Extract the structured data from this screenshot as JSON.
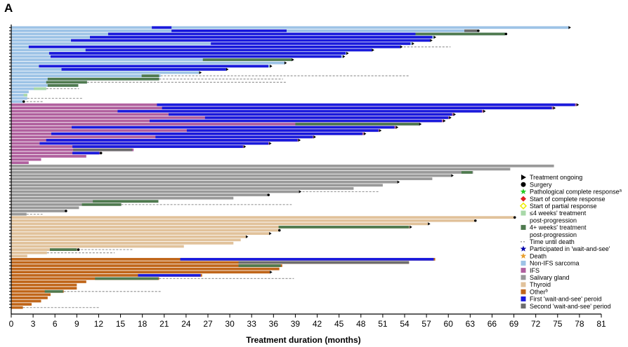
{
  "panel_label": "A",
  "chart_data": {
    "type": "bar",
    "orientation": "horizontal",
    "xlabel": "Treatment duration (months)",
    "ylabel": "",
    "xlim": [
      0,
      81
    ],
    "xticks": [
      0,
      3,
      6,
      9,
      12,
      15,
      18,
      21,
      24,
      27,
      30,
      33,
      36,
      39,
      42,
      45,
      48,
      51,
      54,
      57,
      60,
      63,
      66,
      69,
      72,
      75,
      78,
      81
    ],
    "colors": {
      "non_ifs": "#9dc3e6",
      "ifs": "#b0609e",
      "salivary": "#999999",
      "thyroid": "#e1c29b",
      "other": "#c0661a",
      "first_wait": "#1a1adc",
      "second_wait": "#6d6d6d",
      "post_short": "#a8d8a8",
      "post_long": "#4f7a4f",
      "dash": "#999999",
      "surgery": "#000000",
      "pcr": "#22cc22",
      "cr": "#dd2222",
      "pr": "#eeee00",
      "death": "#e8a030",
      "waitsee_star": "#0000aa"
    },
    "legend": [
      {
        "label": "Treatment ongoing",
        "marker": "triangle",
        "color": "#000000"
      },
      {
        "label": "Surgery",
        "marker": "circle",
        "color": "#000000"
      },
      {
        "label": "Pathological complete response",
        "sup": "a",
        "marker": "star",
        "color": "#22cc22"
      },
      {
        "label": "Start of complete response",
        "marker": "diamond",
        "color": "#dd2222"
      },
      {
        "label": "Start of partial response",
        "marker": "diamond-open",
        "color": "#eeee00"
      },
      {
        "label": "≤4 weeks' treatment",
        "label2": "post-progression",
        "marker": "square",
        "color": "#a8d8a8"
      },
      {
        "label": "4+ weeks' treatment",
        "label2": "post-progression",
        "marker": "square",
        "color": "#4f7a4f"
      },
      {
        "label": "Time until death",
        "marker": "dash",
        "color": "#999999"
      },
      {
        "label": "Participated in 'wait-and-see'",
        "marker": "star",
        "color": "#0000aa"
      },
      {
        "label": "Death",
        "marker": "star",
        "color": "#e8a030"
      },
      {
        "label": "Non-IFS sarcoma",
        "marker": "square",
        "color": "#9dc3e6"
      },
      {
        "label": "IFS",
        "marker": "square",
        "color": "#b0609e"
      },
      {
        "label": "Salivary gland",
        "marker": "square",
        "color": "#999999"
      },
      {
        "label": "Thyroid",
        "marker": "square",
        "color": "#e1c29b"
      },
      {
        "label": "Other",
        "sup": "b",
        "marker": "square",
        "color": "#c0661a"
      },
      {
        "label": "First 'wait-and-see' peroid",
        "marker": "square",
        "color": "#1a1adc"
      },
      {
        "label": "Second 'wait-and-see' period",
        "marker": "square",
        "color": "#6d6d6d"
      }
    ],
    "patients": [
      {
        "group": "non_ifs",
        "dur": 76.5,
        "end": "triangle",
        "segs": [
          [
            19.3,
            22,
            "first_wait"
          ]
        ]
      },
      {
        "group": "non_ifs",
        "dur": 64,
        "end": "circle",
        "segs": [
          [
            22,
            37.8,
            "first_wait"
          ],
          [
            62.2,
            64,
            "second_wait"
          ]
        ]
      },
      {
        "group": "non_ifs",
        "dur": 67.8,
        "end": "circle",
        "segs": [
          [
            13.3,
            55.5,
            "first_wait"
          ],
          [
            55.5,
            67.8,
            "post_long"
          ]
        ]
      },
      {
        "group": "non_ifs",
        "dur": 58,
        "end": "triangle",
        "segs": [
          [
            10.8,
            57.8,
            "first_wait"
          ]
        ]
      },
      {
        "group": "non_ifs",
        "dur": 57.5,
        "end": "triangle",
        "segs": [
          [
            8.2,
            57.5,
            "first_wait"
          ]
        ]
      },
      {
        "group": "non_ifs",
        "dur": 55,
        "end": "triangle",
        "segs": [
          [
            27.4,
            54.8,
            "first_wait"
          ]
        ]
      },
      {
        "group": "non_ifs",
        "dur": 53.4,
        "end": "triangle",
        "dash": 60.3,
        "segs": [
          [
            2.4,
            53.4,
            "first_wait"
          ]
        ]
      },
      {
        "group": "non_ifs",
        "dur": 49.5,
        "end": "triangle",
        "segs": [
          [
            10.2,
            49.5,
            "first_wait"
          ]
        ]
      },
      {
        "group": "non_ifs",
        "dur": 46,
        "end": "triangle",
        "segs": [
          [
            5.2,
            45.9,
            "first_wait"
          ]
        ]
      },
      {
        "group": "non_ifs",
        "dur": 45.5,
        "end": "triangle",
        "segs": [
          [
            5.4,
            45.3,
            "first_wait"
          ]
        ]
      },
      {
        "group": "non_ifs",
        "dur": 38.5,
        "end": "triangle",
        "segs": [
          [
            26.3,
            38.5,
            "post_long"
          ]
        ]
      },
      {
        "group": "non_ifs",
        "dur": 37.5,
        "end": "triangle",
        "segs": []
      },
      {
        "group": "non_ifs",
        "dur": 35.5,
        "end": "triangle",
        "segs": [
          [
            3.8,
            35.3,
            "first_wait"
          ]
        ]
      },
      {
        "group": "non_ifs",
        "dur": 29.5,
        "end": "triangle",
        "segs": [
          [
            6.9,
            29.5,
            "first_wait"
          ]
        ]
      },
      {
        "group": "non_ifs",
        "dur": 25.8,
        "end": "triangle",
        "segs": []
      },
      {
        "group": "non_ifs",
        "dur": 20.5,
        "end": "none",
        "dash": 54.7,
        "segs": [
          [
            17.9,
            20.3,
            "post_long"
          ]
        ]
      },
      {
        "group": "non_ifs",
        "dur": 20.3,
        "end": "none",
        "dash": 37.3,
        "segs": [
          [
            5,
            20.3,
            "post_long"
          ]
        ]
      },
      {
        "group": "non_ifs",
        "dur": 10.4,
        "end": "none",
        "dash": 37.8,
        "segs": [
          [
            4.8,
            10.4,
            "post_long"
          ]
        ]
      },
      {
        "group": "non_ifs",
        "dur": 9.2,
        "end": "none",
        "segs": [
          [
            5,
            9.2,
            "post_long"
          ]
        ]
      },
      {
        "group": "non_ifs",
        "dur": 4.8,
        "end": "none",
        "dash": 9.3,
        "segs": [
          [
            3.1,
            4.8,
            "post_short"
          ]
        ]
      },
      {
        "group": "non_ifs",
        "dur": 2.4,
        "end": "none",
        "segs": []
      },
      {
        "group": "non_ifs",
        "dur": 2.2,
        "end": "none",
        "segs": [
          [
            1.7,
            2.2,
            "post_short"
          ]
        ]
      },
      {
        "group": "non_ifs",
        "dur": 2.2,
        "end": "none",
        "dash": 9.8,
        "segs": []
      },
      {
        "group": "non_ifs",
        "dur": 1.6,
        "end": "circle",
        "dash": 4.3,
        "segs": []
      },
      {
        "group": "ifs",
        "dur": 77.6,
        "end": "triangle",
        "segs": [
          [
            20,
            77.4,
            "first_wait"
          ]
        ]
      },
      {
        "group": "ifs",
        "dur": 74.4,
        "end": "triangle",
        "segs": [
          [
            20.7,
            74.2,
            "first_wait"
          ]
        ]
      },
      {
        "group": "ifs",
        "dur": 64.8,
        "end": "triangle",
        "segs": [
          [
            14.6,
            64.6,
            "first_wait"
          ]
        ]
      },
      {
        "group": "ifs",
        "dur": 60.7,
        "end": "triangle",
        "segs": [
          [
            21.6,
            60.5,
            "first_wait"
          ]
        ]
      },
      {
        "group": "ifs",
        "dur": 60.1,
        "end": "triangle",
        "segs": [
          [
            26.6,
            60,
            "first_wait"
          ]
        ]
      },
      {
        "group": "ifs",
        "dur": 59.3,
        "end": "triangle",
        "segs": [
          [
            19,
            59.1,
            "first_wait"
          ]
        ]
      },
      {
        "group": "ifs",
        "dur": 56,
        "end": "triangle",
        "segs": [
          [
            39,
            56,
            "post_long"
          ]
        ]
      },
      {
        "group": "ifs",
        "dur": 52.8,
        "end": "triangle",
        "segs": [
          [
            8.3,
            52.6,
            "first_wait"
          ]
        ]
      },
      {
        "group": "ifs",
        "dur": 50.5,
        "end": "triangle",
        "segs": [
          [
            24.1,
            50.4,
            "first_wait"
          ]
        ]
      },
      {
        "group": "ifs",
        "dur": 48.4,
        "end": "triangle",
        "segs": [
          [
            5.5,
            48.2,
            "first_wait"
          ]
        ]
      },
      {
        "group": "ifs",
        "dur": 41.5,
        "end": "triangle",
        "segs": [
          [
            19.8,
            41.4,
            "first_wait"
          ]
        ]
      },
      {
        "group": "ifs",
        "dur": 39.4,
        "end": "triangle",
        "segs": [
          [
            4.8,
            39.3,
            "first_wait"
          ]
        ]
      },
      {
        "group": "ifs",
        "dur": 35.4,
        "end": "triangle",
        "segs": [
          [
            3.9,
            35.3,
            "first_wait"
          ]
        ]
      },
      {
        "group": "ifs",
        "dur": 31.9,
        "end": "triangle",
        "segs": [
          [
            8.4,
            31.8,
            "first_wait"
          ]
        ]
      },
      {
        "group": "ifs",
        "dur": 16.8,
        "end": "none",
        "segs": [
          [
            8.5,
            16.6,
            "second_wait"
          ]
        ]
      },
      {
        "group": "ifs",
        "dur": 12.2,
        "end": "circle",
        "segs": [
          [
            8.4,
            12.1,
            "first_wait"
          ]
        ]
      },
      {
        "group": "ifs",
        "dur": 10.3,
        "end": "none",
        "segs": []
      },
      {
        "group": "ifs",
        "dur": 4.1,
        "end": "none",
        "segs": []
      },
      {
        "group": "ifs",
        "dur": 2.4,
        "end": "none",
        "segs": []
      },
      {
        "group": "salivary",
        "dur": 74.5,
        "end": "none",
        "segs": []
      },
      {
        "group": "salivary",
        "dur": 68.5,
        "end": "none",
        "segs": []
      },
      {
        "group": "salivary",
        "dur": 63.4,
        "end": "none",
        "segs": [
          [
            61.8,
            63.3,
            "post_long"
          ]
        ]
      },
      {
        "group": "salivary",
        "dur": 60.4,
        "end": "triangle",
        "segs": []
      },
      {
        "group": "salivary",
        "dur": 57.8,
        "end": "none",
        "segs": []
      },
      {
        "group": "salivary",
        "dur": 53,
        "end": "triangle",
        "segs": []
      },
      {
        "group": "salivary",
        "dur": 51,
        "end": "none",
        "segs": []
      },
      {
        "group": "salivary",
        "dur": 47,
        "end": "none",
        "segs": []
      },
      {
        "group": "salivary",
        "dur": 39.5,
        "end": "triangle",
        "dash": 50.5,
        "segs": []
      },
      {
        "group": "salivary",
        "dur": 35.2,
        "end": "circle",
        "segs": []
      },
      {
        "group": "salivary",
        "dur": 30.5,
        "end": "none",
        "segs": []
      },
      {
        "group": "salivary",
        "dur": 20.2,
        "end": "none",
        "segs": [
          [
            11.2,
            20.2,
            "post_long"
          ]
        ]
      },
      {
        "group": "salivary",
        "dur": 15.1,
        "end": "none",
        "dash": 38.5,
        "segs": [
          [
            9.7,
            15.1,
            "post_long"
          ]
        ]
      },
      {
        "group": "salivary",
        "dur": 9.3,
        "end": "none",
        "segs": []
      },
      {
        "group": "salivary",
        "dur": 7.4,
        "end": "circle",
        "segs": []
      },
      {
        "group": "salivary",
        "dur": 2.1,
        "end": "none",
        "dash": 4.3,
        "segs": []
      },
      {
        "group": "thyroid",
        "dur": 69,
        "end": "circle",
        "segs": []
      },
      {
        "group": "thyroid",
        "dur": 63.6,
        "end": "circle",
        "segs": []
      },
      {
        "group": "thyroid",
        "dur": 57.2,
        "end": "triangle",
        "segs": []
      },
      {
        "group": "thyroid",
        "dur": 54.7,
        "end": "triangle",
        "segs": [
          [
            36.7,
            54.6,
            "post_long"
          ]
        ]
      },
      {
        "group": "thyroid",
        "dur": 36.7,
        "end": "circle",
        "segs": []
      },
      {
        "group": "thyroid",
        "dur": 35.4,
        "end": "triangle",
        "segs": []
      },
      {
        "group": "thyroid",
        "dur": 32.2,
        "end": "triangle",
        "segs": []
      },
      {
        "group": "thyroid",
        "dur": 31.5,
        "end": "none",
        "segs": []
      },
      {
        "group": "thyroid",
        "dur": 30.5,
        "end": "none",
        "segs": []
      },
      {
        "group": "thyroid",
        "dur": 23.7,
        "end": "none",
        "segs": []
      },
      {
        "group": "thyroid",
        "dur": 9.1,
        "end": "circle",
        "dash": 16.8,
        "segs": [
          [
            5.3,
            9,
            "post_long"
          ]
        ]
      },
      {
        "group": "thyroid",
        "dur": 4.9,
        "end": "none",
        "dash": 14.2,
        "segs": []
      },
      {
        "group": "thyroid",
        "dur": 2.2,
        "end": "none",
        "segs": []
      },
      {
        "group": "other",
        "dur": 58.2,
        "end": "none",
        "segs": [
          [
            23.2,
            58,
            "first_wait"
          ]
        ]
      },
      {
        "group": "other",
        "dur": 54.6,
        "end": "none",
        "segs": [
          [
            31.2,
            54.6,
            "second_wait"
          ]
        ]
      },
      {
        "group": "other",
        "dur": 37.2,
        "end": "none",
        "segs": [
          [
            31.2,
            37,
            "post_long"
          ]
        ]
      },
      {
        "group": "other",
        "dur": 36.8,
        "end": "none",
        "segs": []
      },
      {
        "group": "other",
        "dur": 35.5,
        "end": "triangle",
        "segs": []
      },
      {
        "group": "other",
        "dur": 26.2,
        "end": "none",
        "segs": [
          [
            17.4,
            26,
            "first_wait"
          ]
        ]
      },
      {
        "group": "other",
        "dur": 20.3,
        "end": "none",
        "dash": 38.8,
        "segs": [
          [
            11.5,
            20.2,
            "post_long"
          ]
        ]
      },
      {
        "group": "other",
        "dur": 10.3,
        "end": "none",
        "segs": []
      },
      {
        "group": "other",
        "dur": 9,
        "end": "none",
        "segs": []
      },
      {
        "group": "other",
        "dur": 9,
        "end": "none",
        "segs": []
      },
      {
        "group": "other",
        "dur": 7.2,
        "end": "none",
        "dash": 20.5,
        "segs": [
          [
            4.6,
            7.1,
            "post_long"
          ]
        ]
      },
      {
        "group": "other",
        "dur": 5.4,
        "end": "none",
        "segs": []
      },
      {
        "group": "other",
        "dur": 5,
        "end": "none",
        "segs": []
      },
      {
        "group": "other",
        "dur": 4.1,
        "end": "none",
        "segs": []
      },
      {
        "group": "other",
        "dur": 2.8,
        "end": "none",
        "segs": []
      },
      {
        "group": "other",
        "dur": 1.6,
        "end": "none",
        "dash": 12.1,
        "segs": []
      }
    ]
  }
}
